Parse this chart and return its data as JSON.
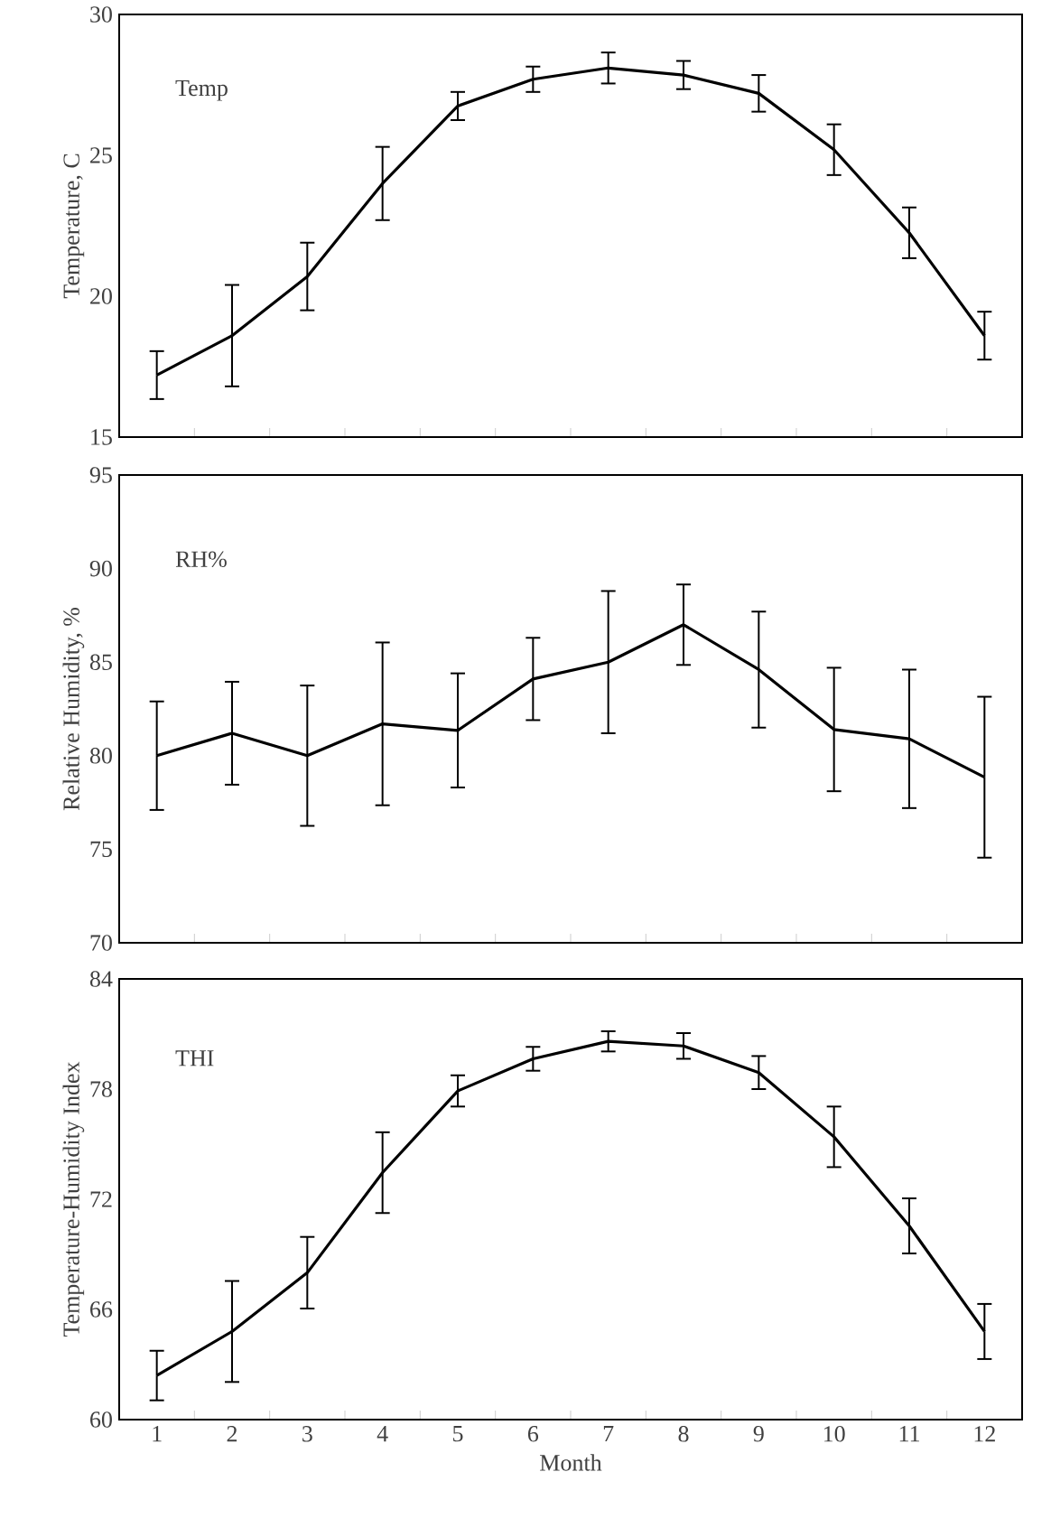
{
  "chart_data": [
    {
      "type": "line",
      "categories": [
        "1",
        "2",
        "3",
        "4",
        "5",
        "6",
        "7",
        "8",
        "9",
        "10",
        "11",
        "12"
      ],
      "values": [
        17.2,
        18.6,
        20.7,
        24.0,
        26.75,
        27.7,
        28.1,
        27.85,
        27.2,
        25.2,
        22.25,
        18.6
      ],
      "errors": [
        0.85,
        1.8,
        1.2,
        1.3,
        0.5,
        0.45,
        0.55,
        0.5,
        0.65,
        0.9,
        0.9,
        0.85
      ],
      "color": "#000000",
      "ylabel": "Temperature, C",
      "ylim": [
        15,
        30
      ],
      "yticks": [
        15,
        20,
        25,
        30
      ],
      "annotations": [
        "Temp"
      ],
      "marker": "none",
      "tick_labels": "y"
    },
    {
      "type": "line",
      "categories": [
        "1",
        "2",
        "3",
        "4",
        "5",
        "6",
        "7",
        "8",
        "9",
        "10",
        "11",
        "12"
      ],
      "values": [
        80.0,
        81.2,
        80.0,
        81.7,
        81.35,
        84.1,
        85.0,
        87.0,
        84.6,
        81.4,
        80.9,
        78.85
      ],
      "errors": [
        2.9,
        2.75,
        3.75,
        4.35,
        3.05,
        2.2,
        3.8,
        2.15,
        3.1,
        3.3,
        3.7,
        4.3
      ],
      "color": "#000000",
      "ylabel": "Relative Humidity, %",
      "ylim": [
        70,
        95
      ],
      "yticks": [
        70,
        75,
        80,
        85,
        90,
        95
      ],
      "annotations": [
        "RH%"
      ],
      "marker": "none",
      "tick_labels": "y"
    },
    {
      "type": "line",
      "categories": [
        "1",
        "2",
        "3",
        "4",
        "5",
        "6",
        "7",
        "8",
        "9",
        "10",
        "11",
        "12"
      ],
      "values": [
        62.4,
        64.8,
        68.0,
        73.45,
        77.9,
        79.65,
        80.6,
        80.35,
        78.9,
        75.4,
        70.55,
        64.8
      ],
      "errors": [
        1.35,
        2.75,
        1.95,
        2.2,
        0.85,
        0.65,
        0.55,
        0.7,
        0.9,
        1.65,
        1.5,
        1.5
      ],
      "color": "#000000",
      "xlabel": "Month",
      "ylabel": "Temperature-Humidity Index",
      "ylim": [
        60,
        84
      ],
      "yticks": [
        60,
        66,
        72,
        78,
        84
      ],
      "annotations": [
        "THI"
      ],
      "marker": "none"
    }
  ]
}
